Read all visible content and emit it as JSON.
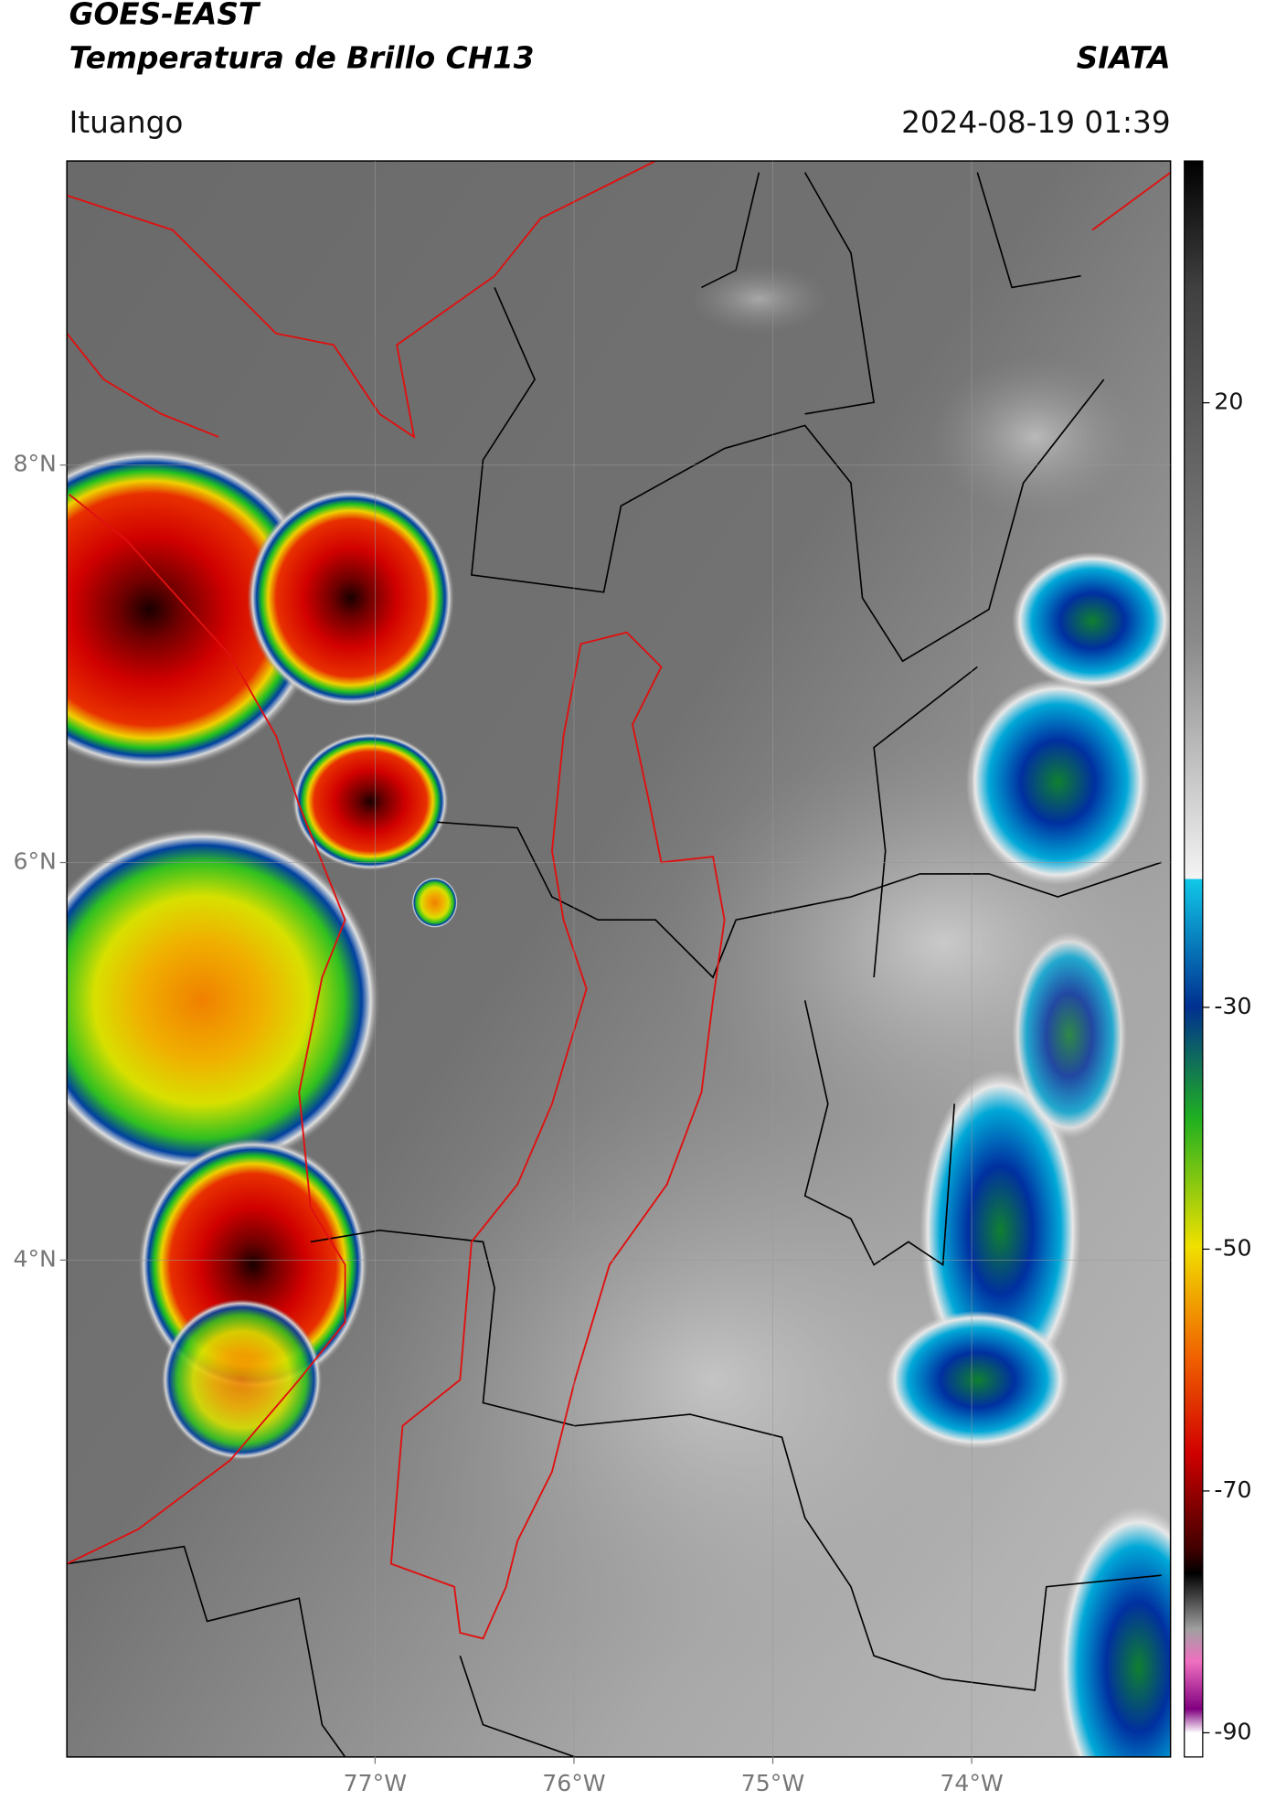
{
  "header": {
    "title": "GOES-EAST",
    "subtitle": "Temperatura de Brillo CH13",
    "source": "SIATA",
    "location": "Ituango",
    "datetime": "2024-08-19 01:39"
  },
  "map": {
    "lonlim": [
      -78.55,
      -73.0
    ],
    "latlim": [
      1.5,
      9.53
    ],
    "lon_ticks": [
      {
        "value": -77,
        "label": "77°W"
      },
      {
        "value": -76,
        "label": "76°W"
      },
      {
        "value": -75,
        "label": "75°W"
      },
      {
        "value": -74,
        "label": "74°W"
      }
    ],
    "lat_ticks": [
      {
        "value": 8,
        "label": "8°N"
      },
      {
        "value": 6,
        "label": "6°N"
      },
      {
        "value": 4,
        "label": "4°N"
      }
    ],
    "grid": true
  },
  "colorbar": {
    "lim": [
      -92,
      40
    ],
    "ticks": [
      20,
      -30,
      -50,
      -70,
      -90
    ]
  }
}
